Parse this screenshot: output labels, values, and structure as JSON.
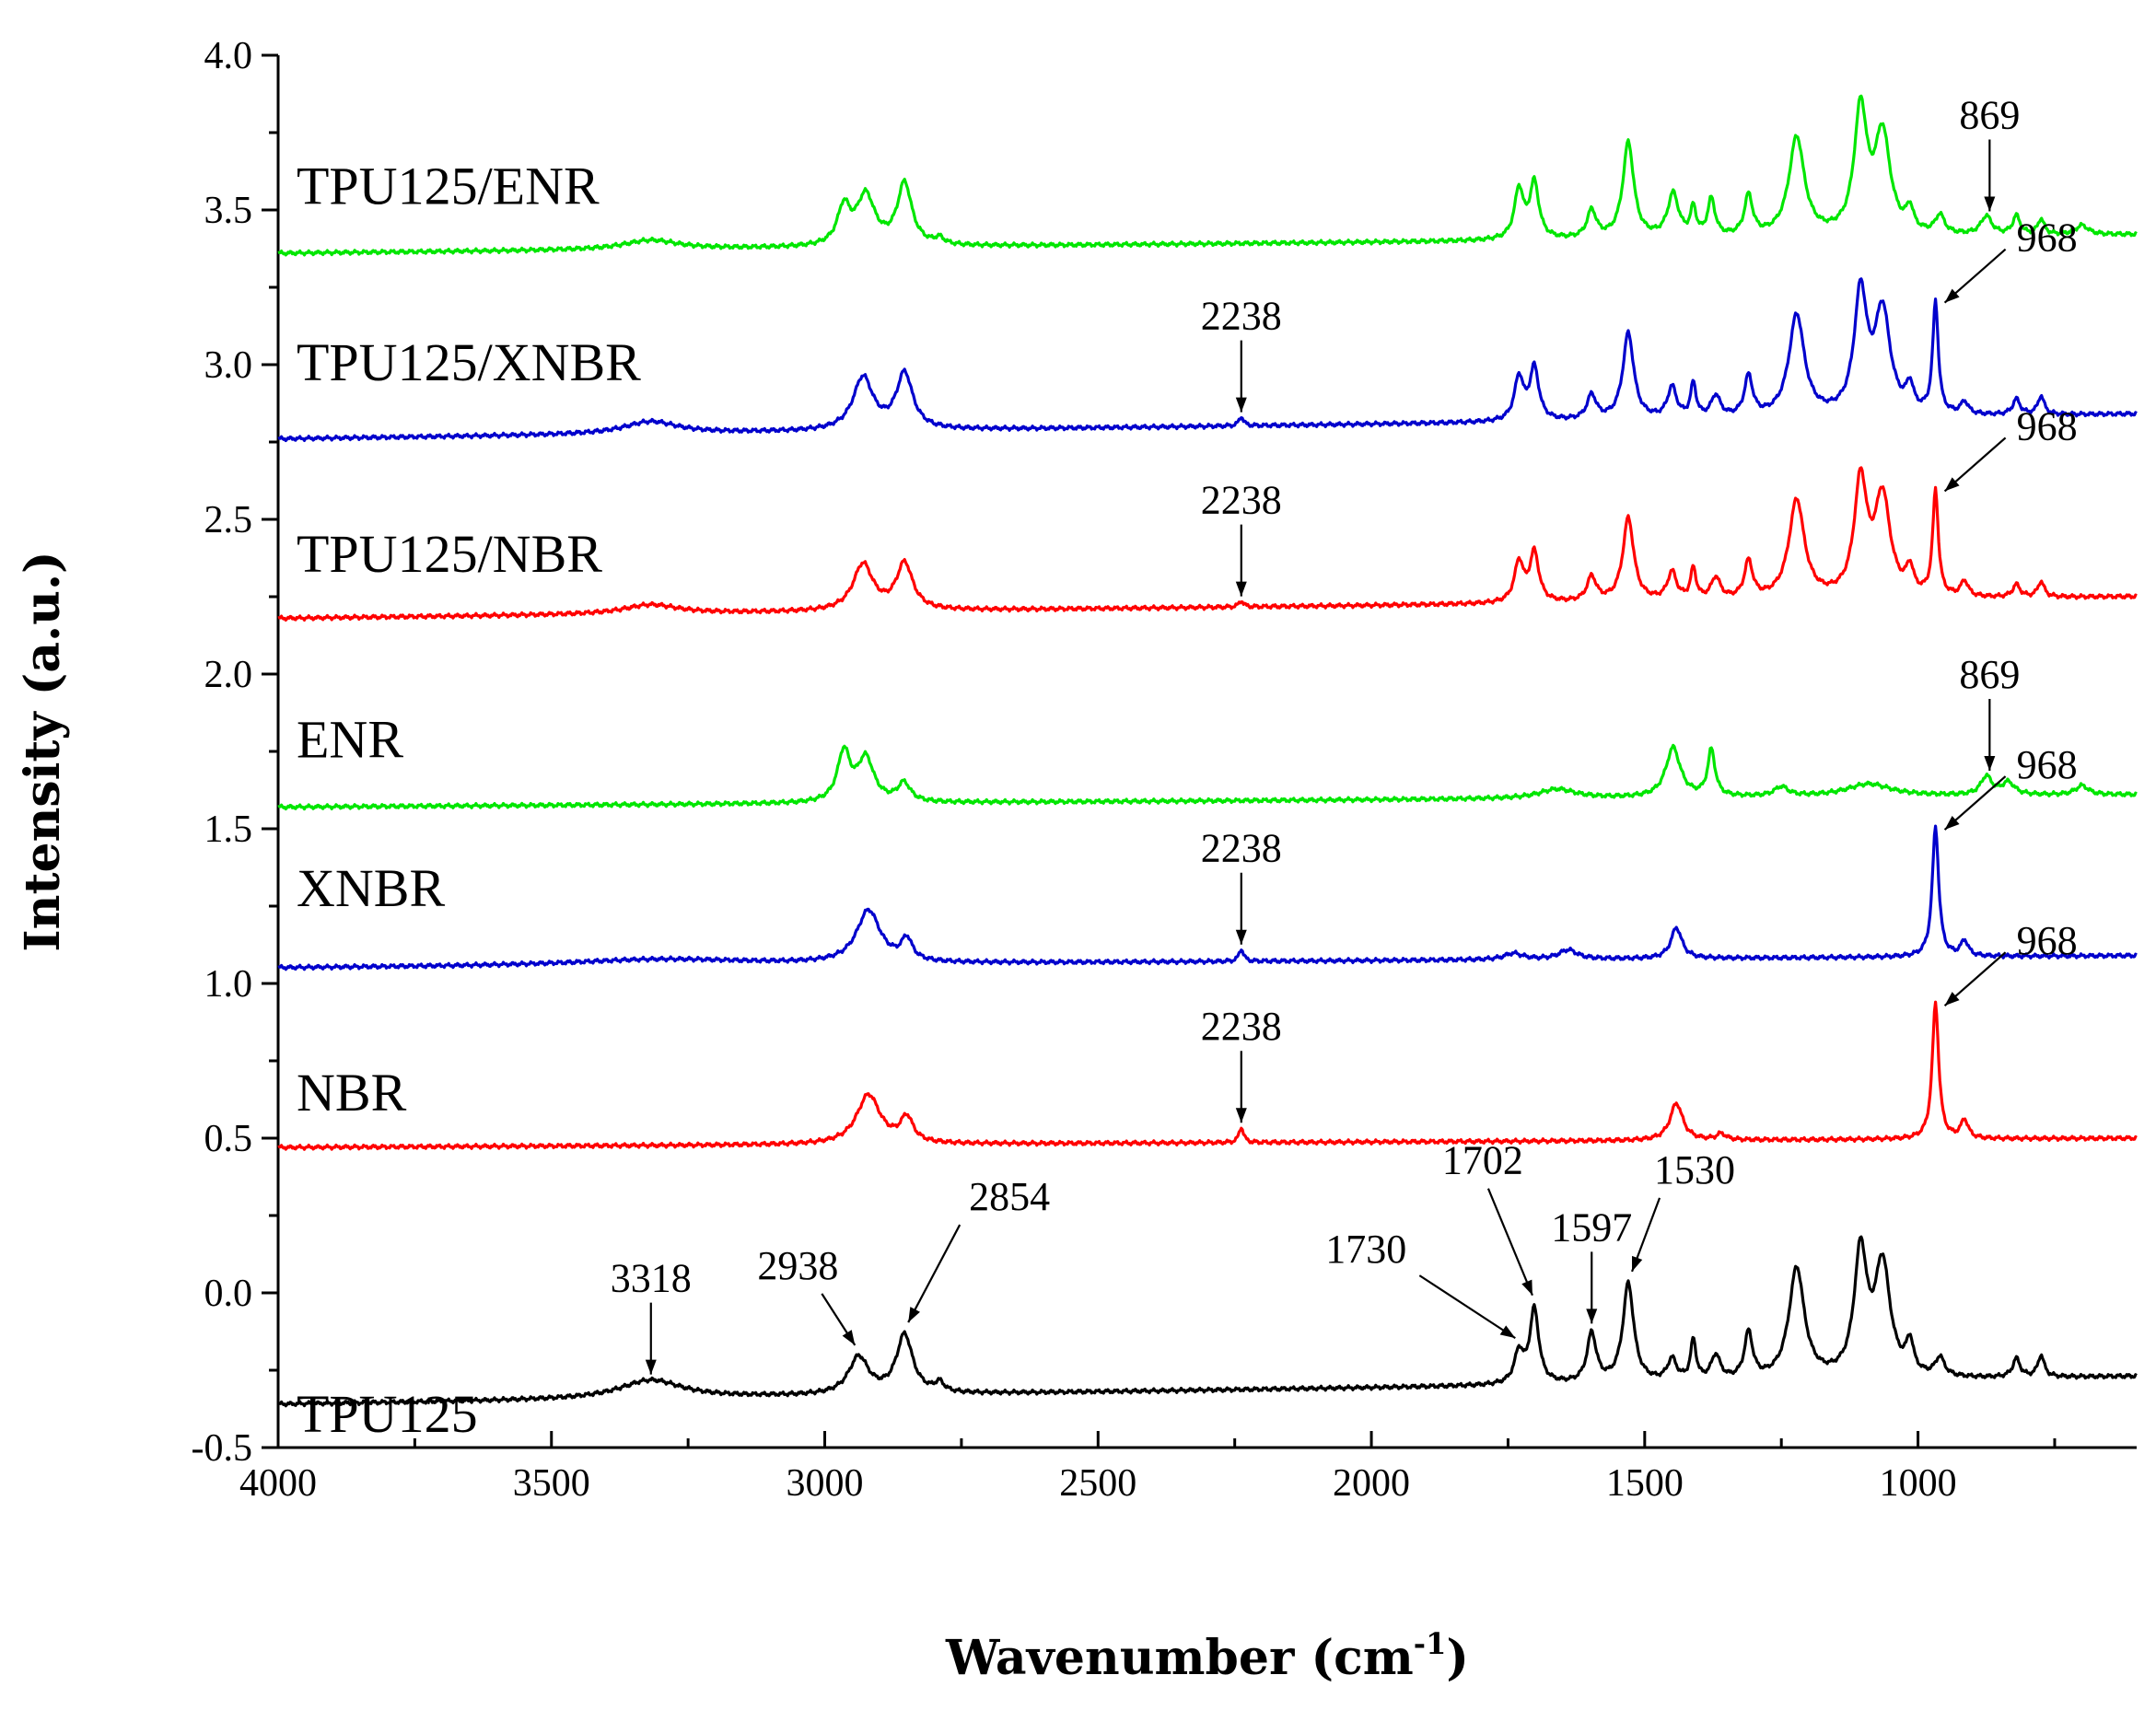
{
  "chart_data": {
    "type": "line",
    "title": "",
    "xlabel": "Wavenumber (cm",
    "xlabel_sup": "-1",
    "xlabel_close": ")",
    "ylabel": "Intensity (a.u.)",
    "xlim": [
      4000,
      600
    ],
    "ylim": [
      -0.5,
      4.0
    ],
    "x_ticks": [
      4000,
      3500,
      3000,
      2500,
      2000,
      1500,
      1000
    ],
    "x_tick_labels": [
      "4000",
      "3500",
      "3000",
      "2500",
      "2000",
      "1500",
      "1000"
    ],
    "y_ticks": [
      -0.5,
      0.0,
      0.5,
      1.0,
      1.5,
      2.0,
      2.5,
      3.0,
      3.5,
      4.0
    ],
    "y_tick_labels": [
      "-0.5",
      "0.0",
      "0.5",
      "1.0",
      "1.5",
      "2.0",
      "2.5",
      "3.0",
      "3.5",
      "4.0"
    ],
    "grid": false,
    "series": [
      {
        "name": "TPU125",
        "label": "TPU125",
        "color": "#000000",
        "baseline": -0.36,
        "baseline_end": -0.27,
        "peaks": [
          [
            3318,
            0.06,
            70
          ],
          [
            2938,
            0.12,
            22
          ],
          [
            2854,
            0.19,
            18
          ],
          [
            2790,
            0.03,
            10
          ],
          [
            1730,
            0.1,
            10
          ],
          [
            1702,
            0.24,
            10
          ],
          [
            1597,
            0.16,
            10
          ],
          [
            1530,
            0.32,
            12
          ],
          [
            1450,
            0.07,
            10
          ],
          [
            1411,
            0.13,
            6
          ],
          [
            1370,
            0.08,
            10
          ],
          [
            1310,
            0.15,
            9
          ],
          [
            1222,
            0.36,
            17
          ],
          [
            1105,
            0.4,
            14
          ],
          [
            1065,
            0.36,
            17
          ],
          [
            1015,
            0.1,
            8
          ],
          [
            960,
            0.06,
            10
          ],
          [
            820,
            0.06,
            8
          ],
          [
            775,
            0.07,
            7
          ]
        ],
        "annotations": [
          {
            "text": "3318",
            "x": 3318
          },
          {
            "text": "2938",
            "x": 2938
          },
          {
            "text": "2854",
            "x": 2854
          },
          {
            "text": "1730",
            "x": 1730
          },
          {
            "text": "1702",
            "x": 1702
          },
          {
            "text": "1597",
            "x": 1597
          },
          {
            "text": "1530",
            "x": 1530
          }
        ]
      },
      {
        "name": "NBR",
        "label": "NBR",
        "color": "#ff0000",
        "baseline": 0.47,
        "baseline_end": 0.5,
        "peaks": [
          [
            2920,
            0.16,
            26
          ],
          [
            2850,
            0.08,
            14
          ],
          [
            2238,
            0.05,
            5
          ],
          [
            1442,
            0.12,
            14
          ],
          [
            1360,
            0.02,
            10
          ],
          [
            968,
            0.44,
            7
          ],
          [
            915,
            0.06,
            8
          ]
        ],
        "annotations": [
          {
            "text": "2238",
            "x": 2238
          },
          {
            "text": "968",
            "x": 968
          }
        ]
      },
      {
        "name": "XNBR",
        "label": "XNBR",
        "color": "#0000cc",
        "baseline": 1.05,
        "baseline_end": 1.09,
        "peaks": [
          [
            3300,
            0.02,
            200
          ],
          [
            2920,
            0.17,
            26
          ],
          [
            2850,
            0.07,
            12
          ],
          [
            2238,
            0.04,
            5
          ],
          [
            1740,
            0.02,
            20
          ],
          [
            1640,
            0.03,
            20
          ],
          [
            1442,
            0.1,
            12
          ],
          [
            968,
            0.42,
            7
          ],
          [
            915,
            0.05,
            8
          ]
        ],
        "annotations": [
          {
            "text": "2238",
            "x": 2238
          },
          {
            "text": "968",
            "x": 968
          }
        ]
      },
      {
        "name": "ENR",
        "label": "ENR",
        "color": "#00e600",
        "baseline": 1.57,
        "baseline_end": 1.61,
        "peaks": [
          [
            2965,
            0.16,
            14
          ],
          [
            2925,
            0.14,
            18
          ],
          [
            2855,
            0.06,
            14
          ],
          [
            1660,
            0.03,
            40
          ],
          [
            1448,
            0.16,
            16
          ],
          [
            1378,
            0.15,
            8
          ],
          [
            1250,
            0.03,
            15
          ],
          [
            1090,
            0.04,
            50
          ],
          [
            875,
            0.06,
            12
          ],
          [
            835,
            0.04,
            14
          ],
          [
            700,
            0.03,
            14
          ]
        ],
        "annotations": [
          {
            "text": "869",
            "x": 869
          }
        ]
      },
      {
        "name": "TPU125/NBR",
        "label": "TPU125/NBR",
        "color": "#ff0000",
        "baseline": 2.18,
        "baseline_end": 2.25,
        "peaks": [
          [
            3318,
            0.03,
            60
          ],
          [
            2930,
            0.15,
            22
          ],
          [
            2854,
            0.15,
            18
          ],
          [
            2238,
            0.02,
            5
          ],
          [
            1730,
            0.13,
            10
          ],
          [
            1702,
            0.16,
            10
          ],
          [
            1597,
            0.08,
            10
          ],
          [
            1530,
            0.27,
            12
          ],
          [
            1450,
            0.09,
            10
          ],
          [
            1411,
            0.1,
            6
          ],
          [
            1370,
            0.07,
            10
          ],
          [
            1310,
            0.12,
            9
          ],
          [
            1222,
            0.32,
            17
          ],
          [
            1105,
            0.37,
            14
          ],
          [
            1065,
            0.32,
            17
          ],
          [
            1015,
            0.08,
            8
          ],
          [
            968,
            0.34,
            6
          ],
          [
            915,
            0.05,
            8
          ],
          [
            820,
            0.04,
            8
          ],
          [
            775,
            0.05,
            7
          ]
        ],
        "annotations": [
          {
            "text": "2238",
            "x": 2238
          },
          {
            "text": "968",
            "x": 968
          }
        ]
      },
      {
        "name": "TPU125/XNBR",
        "label": "TPU125/XNBR",
        "color": "#0000cc",
        "baseline": 2.76,
        "baseline_end": 2.84,
        "peaks": [
          [
            3318,
            0.04,
            60
          ],
          [
            2930,
            0.17,
            22
          ],
          [
            2854,
            0.18,
            18
          ],
          [
            2238,
            0.03,
            5
          ],
          [
            1730,
            0.14,
            10
          ],
          [
            1702,
            0.17,
            10
          ],
          [
            1597,
            0.08,
            10
          ],
          [
            1530,
            0.28,
            12
          ],
          [
            1450,
            0.1,
            10
          ],
          [
            1411,
            0.11,
            6
          ],
          [
            1370,
            0.07,
            10
          ],
          [
            1310,
            0.13,
            9
          ],
          [
            1222,
            0.33,
            17
          ],
          [
            1105,
            0.39,
            14
          ],
          [
            1065,
            0.33,
            17
          ],
          [
            1015,
            0.08,
            8
          ],
          [
            968,
            0.36,
            6
          ],
          [
            915,
            0.04,
            8
          ],
          [
            820,
            0.05,
            8
          ],
          [
            775,
            0.06,
            7
          ]
        ],
        "annotations": [
          {
            "text": "2238",
            "x": 2238
          },
          {
            "text": "968",
            "x": 968
          }
        ]
      },
      {
        "name": "TPU125/ENR",
        "label": "TPU125/ENR",
        "color": "#00e600",
        "baseline": 3.36,
        "baseline_end": 3.42,
        "peaks": [
          [
            3318,
            0.03,
            60
          ],
          [
            2965,
            0.12,
            14
          ],
          [
            2925,
            0.16,
            20
          ],
          [
            2854,
            0.2,
            16
          ],
          [
            2790,
            0.02,
            10
          ],
          [
            1730,
            0.16,
            10
          ],
          [
            1702,
            0.18,
            10
          ],
          [
            1597,
            0.09,
            10
          ],
          [
            1530,
            0.31,
            12
          ],
          [
            1448,
            0.14,
            12
          ],
          [
            1411,
            0.09,
            6
          ],
          [
            1378,
            0.12,
            8
          ],
          [
            1310,
            0.13,
            9
          ],
          [
            1222,
            0.32,
            17
          ],
          [
            1105,
            0.4,
            14
          ],
          [
            1065,
            0.32,
            17
          ],
          [
            1015,
            0.07,
            8
          ],
          [
            960,
            0.06,
            10
          ],
          [
            875,
            0.06,
            12
          ],
          [
            820,
            0.06,
            8
          ],
          [
            775,
            0.05,
            7
          ],
          [
            700,
            0.03,
            14
          ]
        ],
        "annotations": [
          {
            "text": "869",
            "x": 869
          }
        ]
      }
    ]
  }
}
